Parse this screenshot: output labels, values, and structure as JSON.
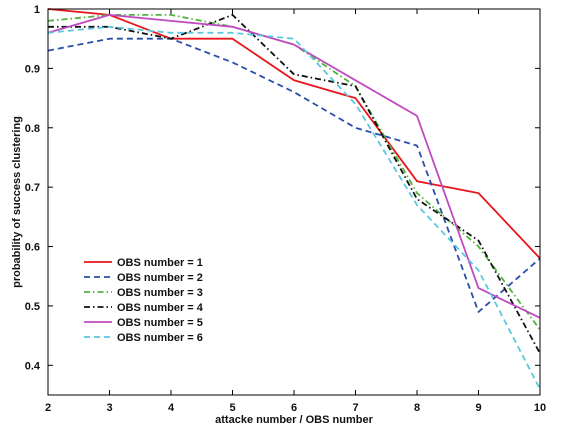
{
  "chart_data": {
    "type": "line",
    "title": "",
    "xlabel": "attacke number / OBS number",
    "ylabel": "probability of success clustering",
    "xlim": [
      2,
      10
    ],
    "ylim": [
      0.35,
      1.0
    ],
    "xticks": [
      2,
      3,
      4,
      5,
      6,
      7,
      8,
      9,
      10
    ],
    "yticks": [
      0.4,
      0.5,
      0.6,
      0.7,
      0.8,
      0.9,
      1
    ],
    "x": [
      2,
      3,
      4,
      5,
      6,
      7,
      8,
      9,
      10
    ],
    "legend_position": "bottom-left",
    "grid": false,
    "series": [
      {
        "name": "OBS number = 1",
        "color": "#e8161b",
        "dash": "solid",
        "values": [
          1.0,
          0.99,
          0.95,
          0.95,
          0.88,
          0.85,
          0.71,
          0.69,
          0.58
        ]
      },
      {
        "name": "OBS number = 2",
        "color": "#2a4fa8",
        "dash": "dashed",
        "values": [
          0.93,
          0.95,
          0.95,
          0.91,
          0.86,
          0.8,
          0.77,
          0.49,
          0.58
        ]
      },
      {
        "name": "OBS number = 3",
        "color": "#4fb33a",
        "dash": "dashdot",
        "values": [
          0.98,
          0.99,
          0.99,
          0.97,
          0.94,
          0.87,
          0.69,
          0.6,
          0.46
        ]
      },
      {
        "name": "OBS number = 4",
        "color": "#111111",
        "dash": "dashdot",
        "values": [
          0.97,
          0.97,
          0.95,
          0.99,
          0.89,
          0.87,
          0.68,
          0.61,
          0.42
        ]
      },
      {
        "name": "OBS number = 5",
        "color": "#c04ac0",
        "dash": "solid",
        "values": [
          0.96,
          0.99,
          0.98,
          0.97,
          0.94,
          0.88,
          0.82,
          0.53,
          0.48
        ]
      },
      {
        "name": "OBS number = 6",
        "color": "#5bc8e0",
        "dash": "dashed",
        "values": [
          0.96,
          0.97,
          0.96,
          0.96,
          0.95,
          0.84,
          0.67,
          0.56,
          0.36
        ]
      }
    ]
  }
}
